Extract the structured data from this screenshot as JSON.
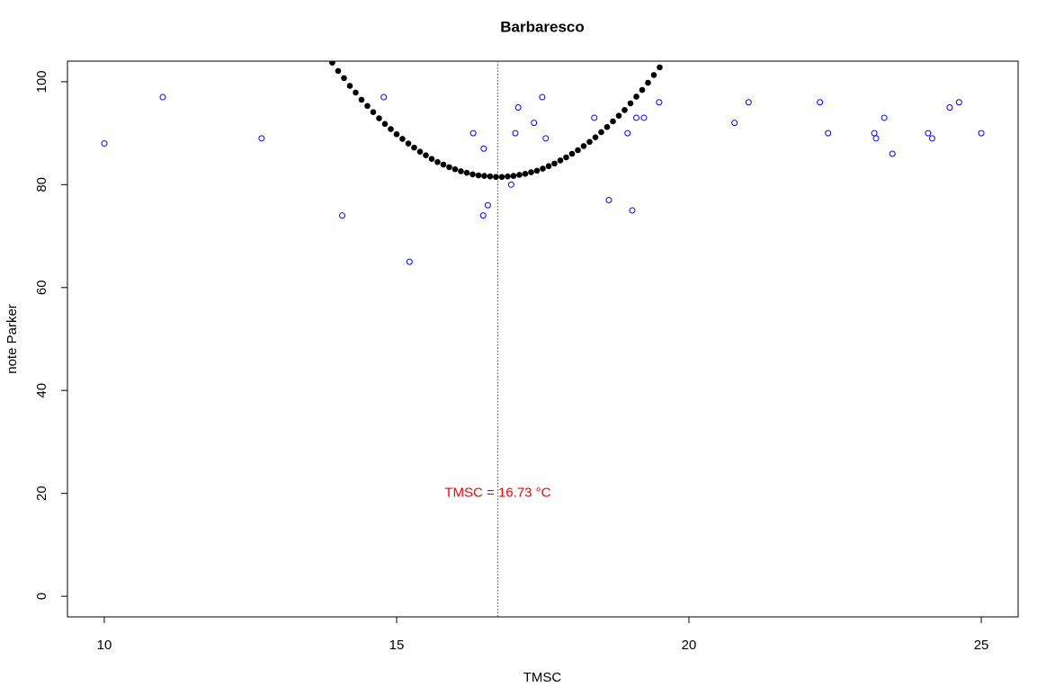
{
  "chart_data": {
    "type": "scatter",
    "title": "Barbaresco",
    "xlabel": "TMSC",
    "ylabel": "note Parker",
    "xlim": [
      9.37,
      25.63
    ],
    "ylim": [
      -4,
      104
    ],
    "xticks": [
      10,
      15,
      20,
      25
    ],
    "yticks": [
      0,
      20,
      40,
      60,
      80,
      100
    ],
    "points": {
      "color": "#0000ff",
      "x": [
        10.0,
        11.0,
        12.69,
        14.07,
        14.78,
        15.22,
        16.31,
        16.49,
        16.48,
        16.56,
        16.96,
        17.03,
        17.08,
        17.35,
        17.49,
        17.55,
        18.38,
        18.63,
        18.95,
        19.03,
        19.1,
        19.23,
        19.49,
        20.78,
        21.02,
        22.24,
        22.38,
        23.17,
        23.2,
        23.34,
        23.48,
        24.09,
        24.16,
        24.46,
        24.62,
        25.0
      ],
      "values": [
        88,
        97,
        89,
        74,
        97,
        65,
        90,
        87,
        74,
        76,
        80,
        90,
        95,
        92,
        97,
        89,
        93,
        77,
        90,
        75,
        93,
        93,
        96,
        92,
        96,
        96,
        90,
        90,
        89,
        93,
        86,
        90,
        89,
        95,
        96,
        90
      ]
    },
    "curve": {
      "color": "#000000",
      "x": [
        13.9,
        14.0,
        14.1,
        14.2,
        14.3,
        14.4,
        14.5,
        14.6,
        14.7,
        14.8,
        14.9,
        15.0,
        15.1,
        15.2,
        15.3,
        15.4,
        15.5,
        15.6,
        15.7,
        15.8,
        15.9,
        16.0,
        16.1,
        16.2,
        16.3,
        16.4,
        16.5,
        16.6,
        16.7,
        16.8,
        16.9,
        17.0,
        17.1,
        17.2,
        17.3,
        17.4,
        17.5,
        17.6,
        17.7,
        17.8,
        17.9,
        18.0,
        18.1,
        18.2,
        18.3,
        18.4,
        18.5,
        18.6,
        18.7,
        18.8,
        18.9,
        19.0,
        19.1,
        19.2,
        19.3,
        19.4,
        19.5
      ],
      "values": [
        103.7,
        102.1,
        100.7,
        99.2,
        97.9,
        96.5,
        95.3,
        94.1,
        92.9,
        91.8,
        90.8,
        89.8,
        88.9,
        88.0,
        87.2,
        86.4,
        85.7,
        85.0,
        84.4,
        83.9,
        83.4,
        83.0,
        82.6,
        82.3,
        82.0,
        81.8,
        81.7,
        81.6,
        81.5,
        81.5,
        81.6,
        81.7,
        81.9,
        82.1,
        82.4,
        82.7,
        83.1,
        83.6,
        84.1,
        84.7,
        85.3,
        86.0,
        86.7,
        87.5,
        88.3,
        89.2,
        90.2,
        91.2,
        92.3,
        93.4,
        94.5,
        95.8,
        97.1,
        98.4,
        99.8,
        101.3,
        102.8
      ]
    },
    "vline": {
      "value": 16.73,
      "color": "#ff0000"
    },
    "annotation": {
      "text": "TMSC =  16.73  °C",
      "x": 16.73,
      "y": 20,
      "color": "#ff0000"
    }
  }
}
